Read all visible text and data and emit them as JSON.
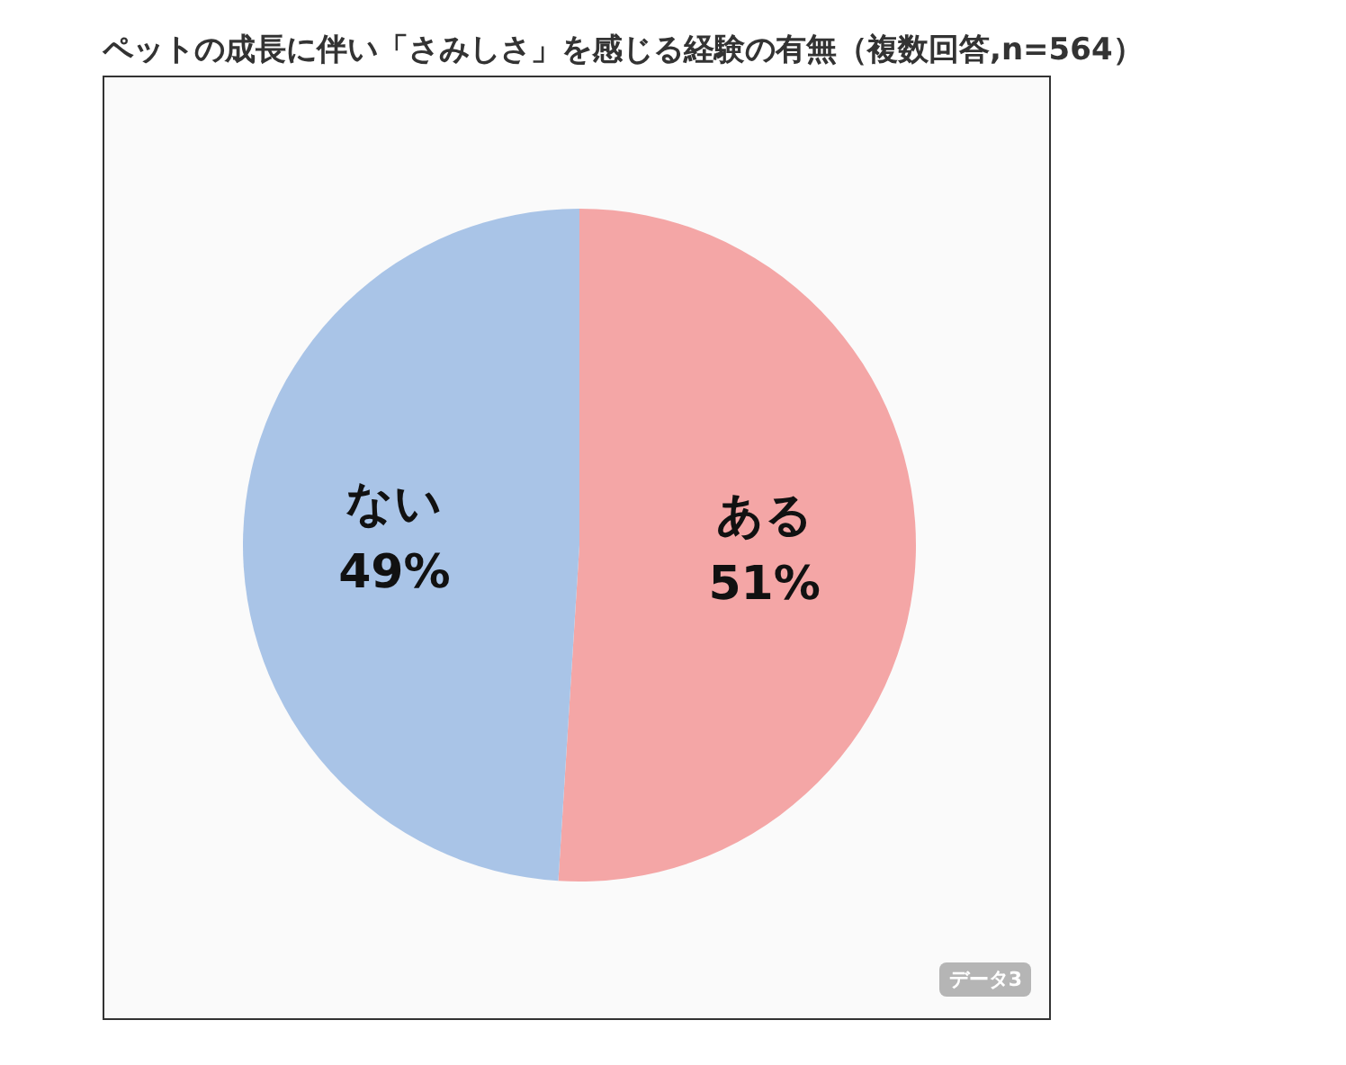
{
  "chart_data": {
    "type": "pie",
    "title": "ペットの成長に伴い「さみしさ」を感じる経験の有無（複数回答,n=564）",
    "categories": [
      "ある",
      "ない"
    ],
    "values": [
      51,
      49
    ],
    "value_labels": [
      "51%",
      "49%"
    ],
    "colors": [
      "#f4a6a6",
      "#a9c4e7"
    ],
    "legend": false,
    "annotations": [
      "データ3"
    ]
  }
}
